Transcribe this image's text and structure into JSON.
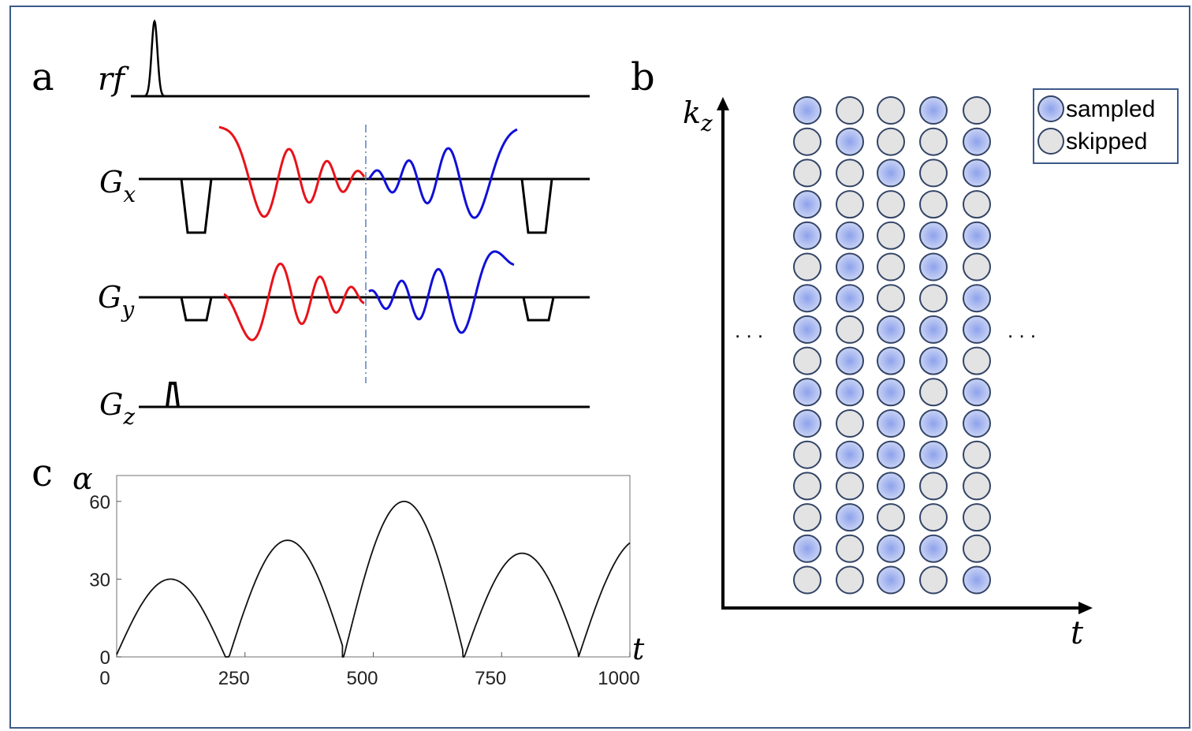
{
  "panel_labels": {
    "a": "a",
    "b": "b",
    "c": "c"
  },
  "panel_a": {
    "channels": {
      "rf": "rf",
      "gx": "G",
      "gx_sub": "x",
      "gy": "G",
      "gy_sub": "y",
      "gz": "G",
      "gz_sub": "z"
    },
    "colors": {
      "first_half": "#e8121a",
      "second_half": "#1010d8",
      "divider": "#5b7fb8"
    }
  },
  "panel_b": {
    "axis_y": "k",
    "axis_y_sub": "z",
    "axis_x": "t",
    "ellipsis_left": ". . .",
    "ellipsis_right": ". . .",
    "legend": {
      "sampled": "sampled",
      "skipped": "skipped"
    },
    "colors": {
      "sampled": "#a8b8ee",
      "skipped": "#e3e3e3",
      "ring": "#334466"
    },
    "grid": [
      [
        1,
        0,
        0,
        1,
        0
      ],
      [
        0,
        1,
        0,
        0,
        1
      ],
      [
        0,
        0,
        1,
        0,
        1
      ],
      [
        1,
        0,
        0,
        0,
        0
      ],
      [
        1,
        1,
        0,
        1,
        1
      ],
      [
        0,
        1,
        0,
        1,
        0
      ],
      [
        1,
        1,
        0,
        0,
        1
      ],
      [
        1,
        0,
        1,
        1,
        1
      ],
      [
        0,
        1,
        1,
        1,
        0
      ],
      [
        1,
        1,
        1,
        0,
        1
      ],
      [
        1,
        0,
        1,
        1,
        1
      ],
      [
        0,
        1,
        1,
        1,
        0
      ],
      [
        0,
        0,
        1,
        0,
        0
      ],
      [
        0,
        1,
        0,
        0,
        0
      ],
      [
        1,
        0,
        1,
        1,
        0
      ],
      [
        0,
        0,
        1,
        0,
        1
      ]
    ]
  },
  "chart_data": {
    "type": "line",
    "title": "",
    "xlabel": "t",
    "ylabel": "α",
    "xlim": [
      0,
      1000
    ],
    "ylim": [
      0,
      70
    ],
    "xticks": [
      "0",
      "250",
      "500",
      "750",
      "1000"
    ],
    "yticks": [
      "0",
      "30",
      "60"
    ],
    "x": [
      0,
      105,
      212,
      333,
      440,
      560,
      675,
      790,
      900,
      1000
    ],
    "values": [
      9,
      30,
      0,
      45,
      0,
      60,
      0,
      40,
      0,
      44
    ],
    "line_color": "#111111"
  }
}
